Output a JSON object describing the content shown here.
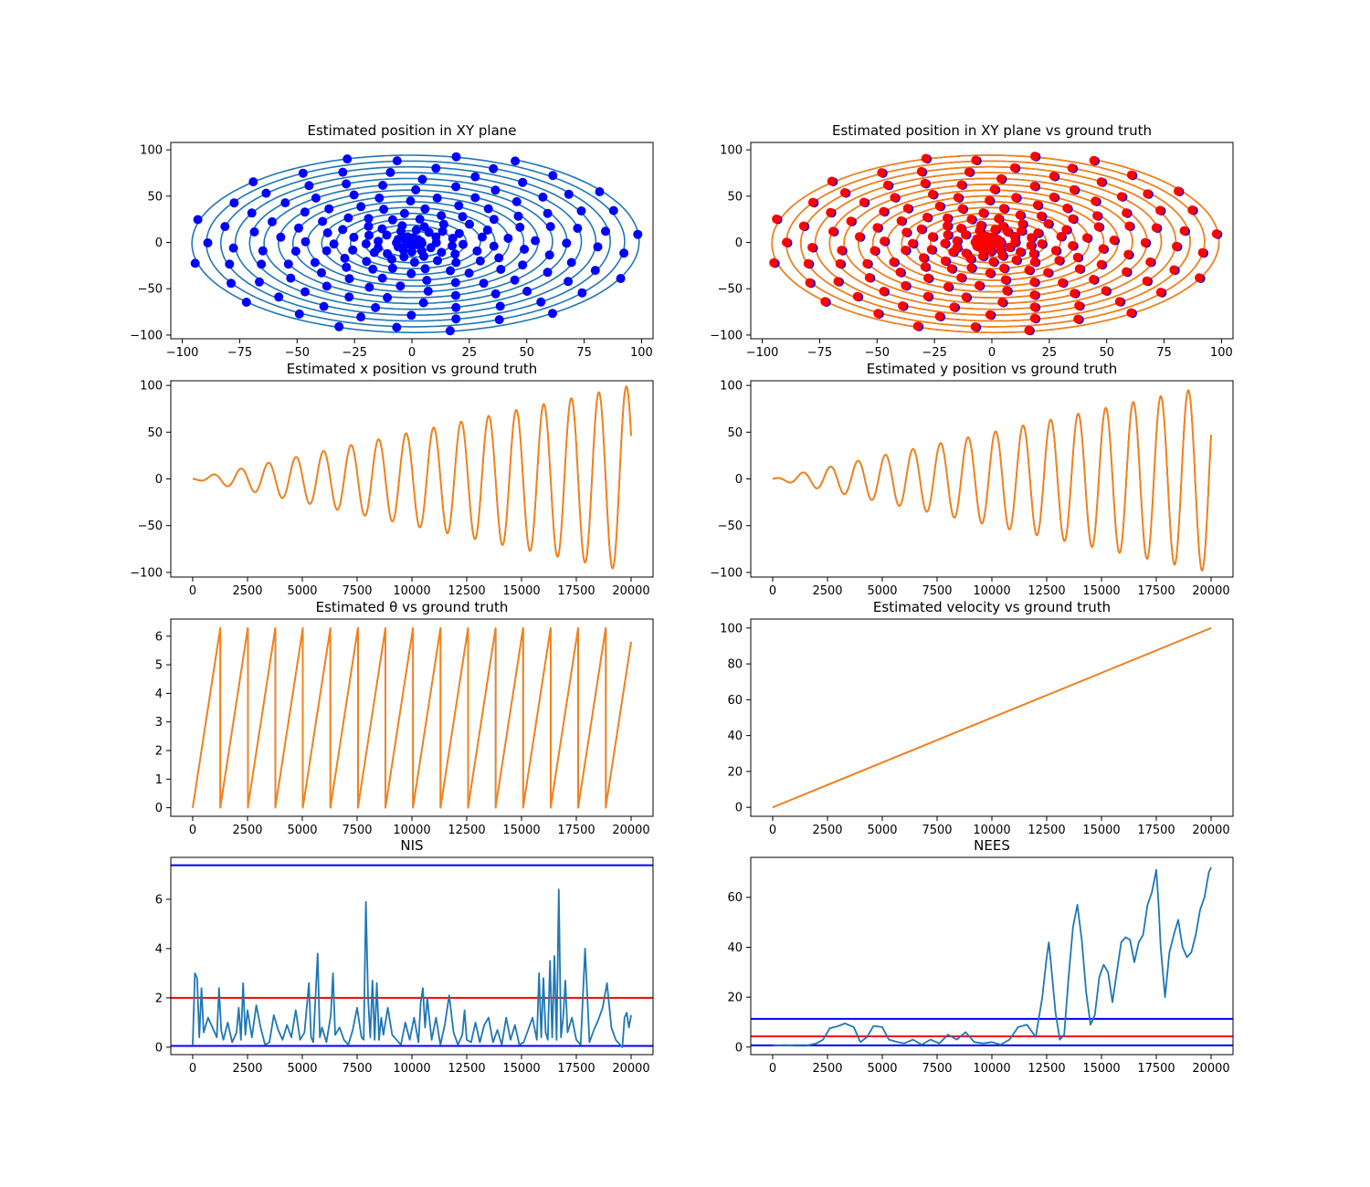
{
  "figure": {
    "background": "#ffffff"
  },
  "colors": {
    "c0": "#1f77b4",
    "c1": "#ff7f0e",
    "blue": "#0000ff",
    "red": "#ff0000"
  },
  "chart_data": [
    {
      "id": "xy-est",
      "type": "line+scatter",
      "title": "Estimated position in XY plane",
      "xlim": [
        -105,
        105
      ],
      "ylim": [
        -104,
        108
      ],
      "xticks": [
        -100,
        -75,
        -50,
        -25,
        0,
        25,
        50,
        75,
        100
      ],
      "yticks": [
        -100,
        -50,
        0,
        50,
        100
      ],
      "series": [
        {
          "kind": "spiral",
          "color": "#1f77b4"
        },
        {
          "kind": "scatter",
          "color": "#0000ff"
        }
      ]
    },
    {
      "id": "xy-gt",
      "type": "line+scatter",
      "title": "Estimated position in XY plane vs ground truth",
      "xlim": [
        -105,
        105
      ],
      "ylim": [
        -104,
        108
      ],
      "xticks": [
        -100,
        -75,
        -50,
        -25,
        0,
        25,
        50,
        75,
        100
      ],
      "yticks": [
        -100,
        -50,
        0,
        50,
        100
      ],
      "series": [
        {
          "kind": "spiral",
          "color": "#1f77b4"
        },
        {
          "kind": "spiral",
          "color": "#ff7f0e"
        },
        {
          "kind": "scatter",
          "color": "#0000ff"
        },
        {
          "kind": "scatter",
          "color": "#ff0000"
        }
      ]
    },
    {
      "id": "x-pos",
      "type": "line",
      "title": "Estimated x position vs ground truth",
      "xlim": [
        -1000,
        21000
      ],
      "ylim": [
        -105,
        105
      ],
      "xticks": [
        0,
        2500,
        5000,
        7500,
        10000,
        12500,
        15000,
        17500,
        20000
      ],
      "yticks": [
        -100,
        -50,
        0,
        50,
        100
      ],
      "series": [
        {
          "kind": "x",
          "color": "#1f77b4"
        },
        {
          "kind": "x",
          "color": "#ff7f0e"
        }
      ]
    },
    {
      "id": "y-pos",
      "type": "line",
      "title": "Estimated y position vs ground truth",
      "xlim": [
        -1000,
        21000
      ],
      "ylim": [
        -105,
        105
      ],
      "xticks": [
        0,
        2500,
        5000,
        7500,
        10000,
        12500,
        15000,
        17500,
        20000
      ],
      "yticks": [
        -100,
        -50,
        0,
        50,
        100
      ],
      "series": [
        {
          "kind": "y",
          "color": "#1f77b4"
        },
        {
          "kind": "y",
          "color": "#ff7f0e"
        }
      ]
    },
    {
      "id": "theta",
      "type": "line",
      "title": "Estimated θ vs ground truth",
      "xlim": [
        -1000,
        21000
      ],
      "ylim": [
        -0.3,
        6.6
      ],
      "xticks": [
        0,
        2500,
        5000,
        7500,
        10000,
        12500,
        15000,
        17500,
        20000
      ],
      "yticks": [
        0,
        1,
        2,
        3,
        4,
        5,
        6
      ],
      "period_samples": 1256,
      "series": [
        {
          "kind": "theta",
          "color": "#1f77b4"
        },
        {
          "kind": "theta",
          "color": "#ff7f0e"
        }
      ]
    },
    {
      "id": "velocity",
      "type": "line",
      "title": "Estimated velocity vs ground truth",
      "xlim": [
        -1000,
        21000
      ],
      "ylim": [
        -5,
        105
      ],
      "xticks": [
        0,
        2500,
        5000,
        7500,
        10000,
        12500,
        15000,
        17500,
        20000
      ],
      "yticks": [
        0,
        20,
        40,
        60,
        80,
        100
      ],
      "series": [
        {
          "kind": "poly",
          "x": [
            0,
            20000
          ],
          "y": [
            0,
            100
          ],
          "color": "#1f77b4"
        },
        {
          "kind": "poly",
          "x": [
            0,
            20000
          ],
          "y": [
            0,
            100
          ],
          "color": "#ff7f0e"
        }
      ]
    },
    {
      "id": "nis",
      "type": "line",
      "title": "NIS",
      "xlim": [
        -1000,
        21000
      ],
      "ylim": [
        -0.3,
        7.7
      ],
      "xticks": [
        0,
        2500,
        5000,
        7500,
        10000,
        12500,
        15000,
        17500,
        20000
      ],
      "yticks": [
        0,
        2,
        4,
        6
      ],
      "hlines": [
        {
          "y": 7.38,
          "color": "#0000ff"
        },
        {
          "y": 2.0,
          "color": "#ff0000"
        },
        {
          "y": 0.05,
          "color": "#0000ff"
        }
      ],
      "series": [
        {
          "kind": "poly",
          "color": "#1f77b4",
          "x": [
            0,
            100,
            200,
            300,
            400,
            500,
            700,
            900,
            1100,
            1200,
            1300,
            1400,
            1600,
            1800,
            2000,
            2100,
            2200,
            2300,
            2400,
            2500,
            2700,
            2900,
            3100,
            3300,
            3500,
            3700,
            3900,
            4100,
            4300,
            4500,
            4700,
            4900,
            5100,
            5300,
            5400,
            5500,
            5700,
            5800,
            5900,
            6100,
            6300,
            6400,
            6500,
            6700,
            6900,
            7100,
            7300,
            7500,
            7700,
            7800,
            7900,
            8000,
            8100,
            8200,
            8300,
            8400,
            8500,
            8600,
            8700,
            8900,
            9100,
            9300,
            9500,
            9700,
            9900,
            10100,
            10300,
            10400,
            10500,
            10600,
            10700,
            10900,
            11100,
            11300,
            11500,
            11700,
            11900,
            12100,
            12300,
            12400,
            12500,
            12700,
            12900,
            13100,
            13300,
            13500,
            13700,
            13900,
            14100,
            14300,
            14500,
            14700,
            14900,
            15100,
            15300,
            15500,
            15700,
            15800,
            15900,
            16000,
            16100,
            16200,
            16300,
            16400,
            16500,
            16600,
            16700,
            16800,
            16900,
            17000,
            17100,
            17300,
            17500,
            17700,
            17900,
            18100,
            18300,
            18500,
            18700,
            18900,
            19100,
            19300,
            19500,
            19600,
            19700,
            19800,
            19900,
            20000
          ],
          "y": [
            0.1,
            3.0,
            2.8,
            0.4,
            2.4,
            0.6,
            1.2,
            0.8,
            0.4,
            2.4,
            0.7,
            0.3,
            1.0,
            0.2,
            0.6,
            1.6,
            0.3,
            2.6,
            0.5,
            1.5,
            0.4,
            1.7,
            0.8,
            0.1,
            0.2,
            1.3,
            0.7,
            0.3,
            0.9,
            0.4,
            1.5,
            0.3,
            0.6,
            2.6,
            0.4,
            0.2,
            3.8,
            0.4,
            0.8,
            0.2,
            1.3,
            3.0,
            0.5,
            0.8,
            0.3,
            0.1,
            0.7,
            1.6,
            0.4,
            0.3,
            5.9,
            2.0,
            0.4,
            2.7,
            0.3,
            2.6,
            0.3,
            1.2,
            0.5,
            1.6,
            0.5,
            0.3,
            0.1,
            1.0,
            0.3,
            1.2,
            0.2,
            1.8,
            2.4,
            0.8,
            2.0,
            0.3,
            1.2,
            0.1,
            0.9,
            2.1,
            0.6,
            0.1,
            0.5,
            1.5,
            0.3,
            0.2,
            1.0,
            0.2,
            0.9,
            1.2,
            0.2,
            0.7,
            0.1,
            1.2,
            0.3,
            0.9,
            0.1,
            0.2,
            0.7,
            1.2,
            0.3,
            3.0,
            0.4,
            2.8,
            0.6,
            0.3,
            3.5,
            0.4,
            3.7,
            0.3,
            6.4,
            0.4,
            1.2,
            2.7,
            0.6,
            1.2,
            0.3,
            0.1,
            4.0,
            0.2,
            0.7,
            1.1,
            1.6,
            2.6,
            0.8,
            0.3,
            0.1,
            0.0,
            1.2,
            1.4,
            0.8,
            1.3
          ]
        }
      ]
    },
    {
      "id": "nees",
      "type": "line",
      "title": "NEES",
      "xlim": [
        -1000,
        21000
      ],
      "ylim": [
        -3,
        76
      ],
      "xticks": [
        0,
        2500,
        5000,
        7500,
        10000,
        12500,
        15000,
        17500,
        20000
      ],
      "yticks": [
        0,
        20,
        40,
        60
      ],
      "hlines": [
        {
          "y": 11.3,
          "color": "#0000ff"
        },
        {
          "y": 4.3,
          "color": "#ff0000"
        },
        {
          "y": 0.7,
          "color": "#0000ff"
        }
      ],
      "series": [
        {
          "kind": "poly",
          "color": "#1f77b4",
          "x": [
            0,
            500,
            1000,
            1500,
            2000,
            2300,
            2600,
            3000,
            3300,
            3700,
            4000,
            4300,
            4600,
            5000,
            5300,
            5700,
            6000,
            6400,
            6800,
            7200,
            7600,
            8000,
            8400,
            8800,
            9200,
            9600,
            10000,
            10400,
            10800,
            11200,
            11600,
            12000,
            12300,
            12500,
            12600,
            12700,
            12900,
            13100,
            13300,
            13500,
            13700,
            13900,
            14100,
            14300,
            14500,
            14700,
            14900,
            15100,
            15300,
            15500,
            15700,
            15900,
            16100,
            16300,
            16500,
            16700,
            16900,
            17100,
            17300,
            17500,
            17600,
            17700,
            17900,
            18100,
            18300,
            18500,
            18700,
            18900,
            19100,
            19300,
            19500,
            19700,
            19900,
            20000
          ],
          "y": [
            0.5,
            0.8,
            0.6,
            0.5,
            1.5,
            3.0,
            7.5,
            8.5,
            9.5,
            8.0,
            2.0,
            4.0,
            8.5,
            8.0,
            3.0,
            2.0,
            1.5,
            3.0,
            1.0,
            3.0,
            1.5,
            5.0,
            3.0,
            6.0,
            2.0,
            1.5,
            2.0,
            1.0,
            3.0,
            8.0,
            9.0,
            4.0,
            20.0,
            36.0,
            42.0,
            33.0,
            14.0,
            3.0,
            5.0,
            28.0,
            48.0,
            57.0,
            43.0,
            22.0,
            9.0,
            13.0,
            28.0,
            33.0,
            30.0,
            18.0,
            30.0,
            42.0,
            44.0,
            43.0,
            34.0,
            42.0,
            45.0,
            57.0,
            62.0,
            71.0,
            58.0,
            40.0,
            20.0,
            38.0,
            45.0,
            51.0,
            40.0,
            36.0,
            38.0,
            45.0,
            55.0,
            60.0,
            70.0,
            72.0
          ]
        }
      ]
    }
  ]
}
